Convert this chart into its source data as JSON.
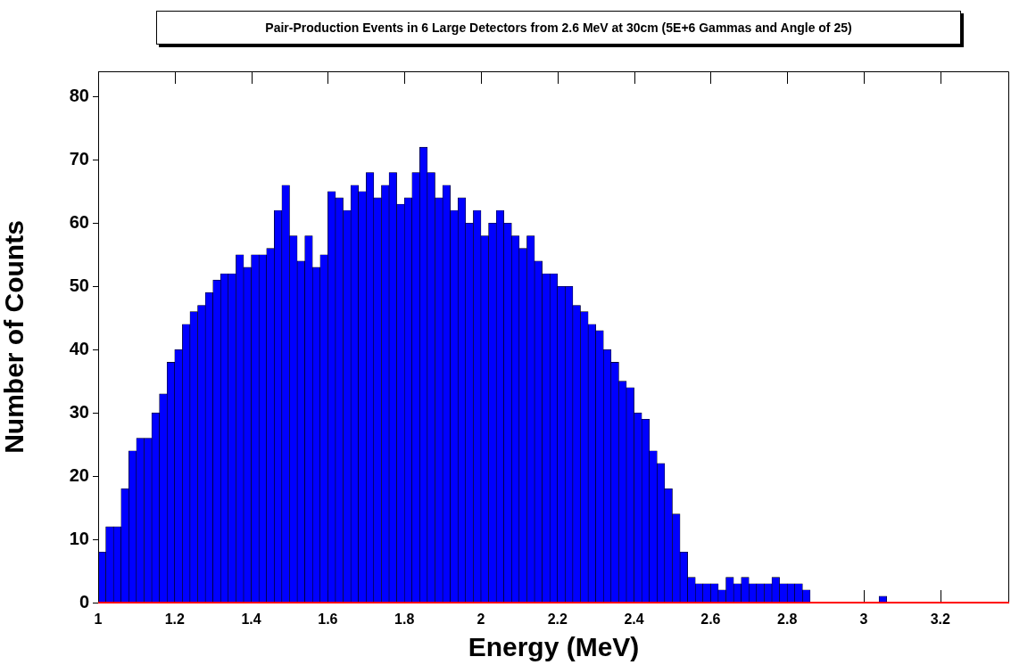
{
  "chart_data": {
    "type": "histogram",
    "title": "Pair-Production Events in 6 Large Detectors from 2.6 MeV at 30cm (5E+6 Gammas and Angle of 25)",
    "xlabel": "Energy (MeV)",
    "ylabel": "Number of Counts",
    "color": "#0000ff",
    "bins": [
      1,
      1.02,
      1.04,
      1.06,
      1.08,
      1.1,
      1.12,
      1.14,
      1.16,
      1.18,
      1.2,
      1.22,
      1.24,
      1.26,
      1.28,
      1.3,
      1.32,
      1.34,
      1.36,
      1.38,
      1.4,
      1.42,
      1.44,
      1.46,
      1.48,
      1.5,
      1.52,
      1.54,
      1.56,
      1.58,
      1.6,
      1.62,
      1.64,
      1.66,
      1.68,
      1.7,
      1.72,
      1.74,
      1.76,
      1.78,
      1.8,
      1.82,
      1.84,
      1.86,
      1.88,
      1.9,
      1.92,
      1.94,
      1.96,
      1.98,
      2,
      2.02,
      2.04,
      2.06,
      2.08,
      2.1,
      2.12,
      2.14,
      2.16,
      2.18,
      2.2,
      2.22,
      2.24,
      2.26,
      2.28,
      2.3,
      2.32,
      2.34,
      2.36,
      2.38,
      2.4,
      2.42,
      2.44,
      2.46,
      2.48,
      2.5,
      2.52,
      2.54,
      2.56,
      2.58,
      2.6,
      2.62,
      2.64,
      2.66,
      2.68,
      2.7,
      2.72,
      2.74,
      2.76,
      2.78,
      2.8,
      2.82,
      2.84,
      2.86,
      2.88,
      2.9,
      2.92,
      2.94,
      2.96,
      2.98,
      3,
      3.02,
      3.04,
      3.06,
      3.08,
      3.1,
      3.12,
      3.14,
      3.16,
      3.18,
      3.2,
      3.22,
      3.24,
      3.26,
      3.28,
      3.3,
      3.32,
      3.34,
      3.36,
      3.38
    ],
    "values": [
      8,
      12,
      12,
      18,
      24,
      26,
      26,
      30,
      33,
      38,
      40,
      44,
      46,
      47,
      49,
      51,
      52,
      52,
      55,
      53,
      55,
      55,
      56,
      62,
      66,
      58,
      54,
      58,
      53,
      55,
      65,
      64,
      62,
      66,
      65,
      68,
      64,
      66,
      68,
      63,
      64,
      68,
      72,
      68,
      64,
      66,
      62,
      64,
      60,
      62,
      58,
      60,
      62,
      60,
      58,
      56,
      58,
      54,
      52,
      52,
      50,
      50,
      47,
      46,
      44,
      43,
      40,
      38,
      35,
      34,
      30,
      29,
      24,
      22,
      18,
      14,
      8,
      4,
      3,
      3,
      3,
      2,
      4,
      3,
      4,
      3,
      3,
      3,
      4,
      3,
      3,
      3,
      2,
      0,
      0,
      0,
      0,
      0,
      0,
      0,
      0,
      0,
      1,
      0,
      0,
      0,
      0,
      0,
      0,
      0,
      0,
      0,
      0,
      0,
      0,
      0,
      0,
      0,
      0
    ],
    "xlim": [
      1,
      3.38
    ],
    "xticks": [
      1,
      1.2,
      1.4,
      1.6,
      1.8,
      2,
      2.2,
      2.4,
      2.6,
      2.8,
      3,
      3.2
    ],
    "ylim": [
      0,
      84
    ],
    "yticks": [
      0,
      10,
      20,
      30,
      40,
      50,
      60,
      70,
      80
    ]
  }
}
